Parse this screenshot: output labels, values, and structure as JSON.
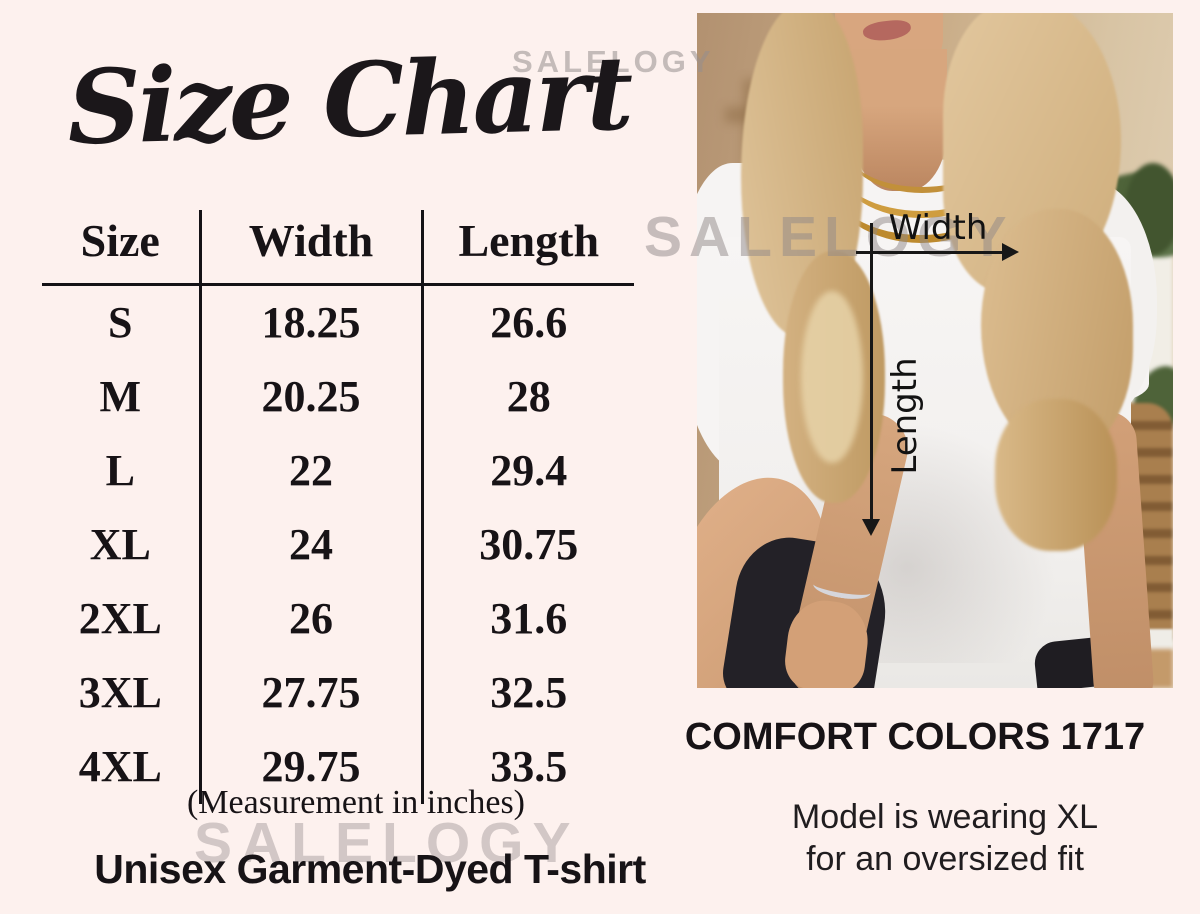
{
  "title": "Size Chart",
  "watermark": "SALELOGY",
  "size_table": {
    "columns": [
      "Size",
      "Width",
      "Length"
    ],
    "rows": [
      {
        "size": "S",
        "width": "18.25",
        "length": "26.6"
      },
      {
        "size": "M",
        "width": "20.25",
        "length": "28"
      },
      {
        "size": "L",
        "width": "22",
        "length": "29.4"
      },
      {
        "size": "XL",
        "width": "24",
        "length": "30.75"
      },
      {
        "size": "2XL",
        "width": "26",
        "length": "31.6"
      },
      {
        "size": "3XL",
        "width": "27.75",
        "length": "32.5"
      },
      {
        "size": "4XL",
        "width": "29.75",
        "length": "33.5"
      }
    ],
    "note": "(Measurement in inches)"
  },
  "product": {
    "name": "Unisex Garment-Dyed T-shirt",
    "style": "COMFORT COLORS 1717",
    "fit_note_line1": "Model is wearing XL",
    "fit_note_line2": "for an oversized fit"
  },
  "photo_annotations": {
    "width_label": "Width",
    "length_label": "Length"
  },
  "colors": {
    "background": "#fdf1ee",
    "text": "#171316",
    "watermark_gray": "#968e8e",
    "arrow_black": "#171717",
    "necklace_gold": "#cf9d3f"
  },
  "chart_data": {
    "type": "table",
    "title": "Size Chart",
    "units": "inches",
    "columns": [
      "Size",
      "Width",
      "Length"
    ],
    "rows": [
      [
        "S",
        18.25,
        26.6
      ],
      [
        "M",
        20.25,
        28
      ],
      [
        "L",
        22,
        29.4
      ],
      [
        "XL",
        24,
        30.75
      ],
      [
        "2XL",
        26,
        31.6
      ],
      [
        "3XL",
        27.75,
        32.5
      ],
      [
        "4XL",
        29.75,
        33.5
      ]
    ],
    "notes": [
      "(Measurement in inches)",
      "Unisex Garment-Dyed T-shirt",
      "COMFORT COLORS 1717",
      "Model is wearing XL for an oversized fit"
    ]
  }
}
